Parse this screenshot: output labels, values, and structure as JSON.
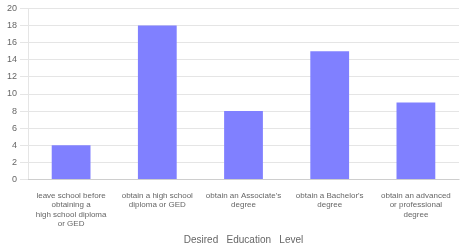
{
  "chart_data": {
    "type": "bar",
    "xlabel": "Desired   Education   Level",
    "categories": [
      "leave school before obtaining a\nhigh school diploma or GED",
      "obtain a high school diploma or GED",
      "obtain an Associate's degree",
      "obtain a Bachelor's degree",
      "obtain an advanced or professional\ndegree"
    ],
    "values": [
      4,
      18,
      8,
      15,
      9
    ],
    "color": "#8080ff",
    "ylim": [
      0,
      20
    ],
    "yticks": [
      0,
      2,
      4,
      6,
      8,
      10,
      12,
      14,
      16,
      18,
      20
    ],
    "grid": true
  }
}
